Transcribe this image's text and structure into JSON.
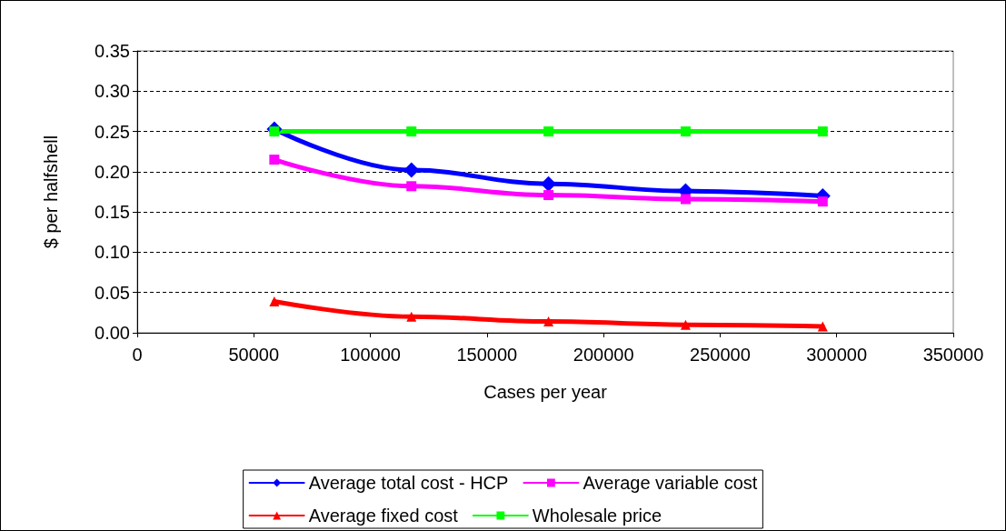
{
  "chart_data": {
    "type": "line",
    "xlabel": "Cases per year",
    "ylabel": "$ per halfshell",
    "x": [
      58800,
      117600,
      176400,
      235200,
      294000
    ],
    "series": [
      {
        "name": "Average total cost - HCP",
        "color": "#0000ff",
        "marker": "diamond",
        "values": [
          0.253,
          0.202,
          0.185,
          0.176,
          0.17
        ]
      },
      {
        "name": "Average variable cost",
        "color": "#ff00ff",
        "marker": "square",
        "values": [
          0.215,
          0.182,
          0.171,
          0.166,
          0.163
        ]
      },
      {
        "name": "Average fixed cost",
        "color": "#ff0000",
        "marker": "triangle",
        "values": [
          0.039,
          0.02,
          0.014,
          0.01,
          0.008
        ]
      },
      {
        "name": "Wholesale price",
        "color": "#00ff00",
        "marker": "square",
        "values": [
          0.25,
          0.25,
          0.25,
          0.25,
          0.25
        ]
      }
    ],
    "xlim": [
      0,
      350000
    ],
    "xticks": [
      0,
      50000,
      100000,
      150000,
      200000,
      250000,
      300000,
      350000
    ],
    "ylim": [
      0,
      0.35
    ],
    "yticks": [
      {
        "value": 0,
        "label": "0.00"
      },
      {
        "value": 0.05,
        "label": "0.05"
      },
      {
        "value": 0.1,
        "label": "0.10"
      },
      {
        "value": 0.15,
        "label": "0.15"
      },
      {
        "value": 0.2,
        "label": "0.20"
      },
      {
        "value": 0.25,
        "label": "0.25"
      },
      {
        "value": 0.3,
        "label": "0.30"
      },
      {
        "value": 0.35,
        "label": "0.35"
      }
    ],
    "grid": "y",
    "legend": "bottom",
    "line_style": "solid"
  }
}
